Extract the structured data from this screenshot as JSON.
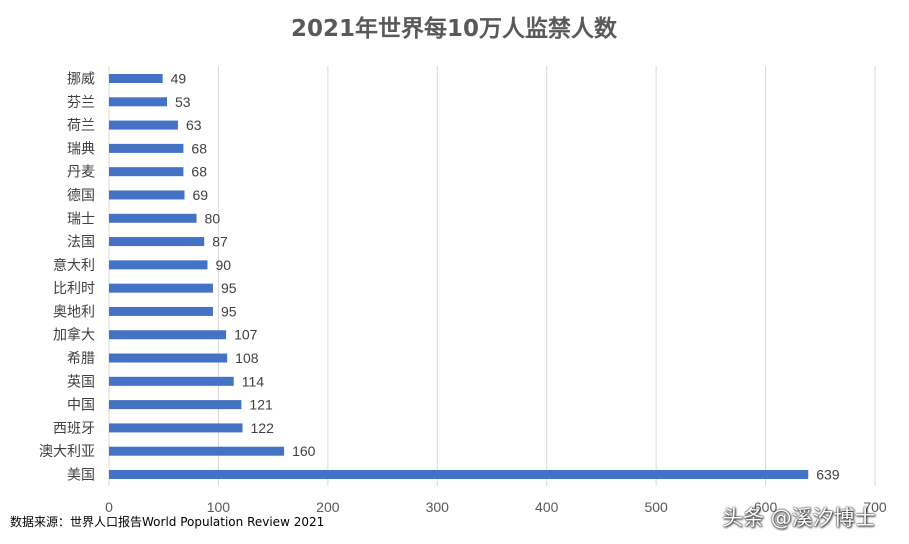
{
  "chart_data": {
    "type": "bar",
    "orientation": "horizontal",
    "title": "2021年世界每10万人监禁人数",
    "categories": [
      "挪威",
      "芬兰",
      "荷兰",
      "瑞典",
      "丹麦",
      "德国",
      "瑞士",
      "法国",
      "意大利",
      "比利时",
      "奥地利",
      "加拿大",
      "希腊",
      "英国",
      "中国",
      "西班牙",
      "澳大利亚",
      "美国"
    ],
    "values": [
      49,
      53,
      63,
      68,
      68,
      69,
      80,
      87,
      90,
      95,
      95,
      107,
      108,
      114,
      121,
      122,
      160,
      639
    ],
    "value_labels": [
      "49",
      "53",
      "63",
      "68",
      "68",
      "69",
      "80",
      "87",
      "90",
      "95",
      "95",
      "107",
      "108",
      "114",
      "121",
      "122",
      "160",
      "639"
    ],
    "x_ticks": [
      "0",
      "100",
      "200",
      "300",
      "400",
      "500",
      "600",
      "700"
    ],
    "xlim": [
      0,
      700
    ],
    "grid": true,
    "legend": "none",
    "bar_color": "#4472C4",
    "grid_color": "#D9D9D9"
  },
  "source_note": "数据来源：世界人口报告World Population Review 2021",
  "watermark": "头条 @溪汐博士"
}
